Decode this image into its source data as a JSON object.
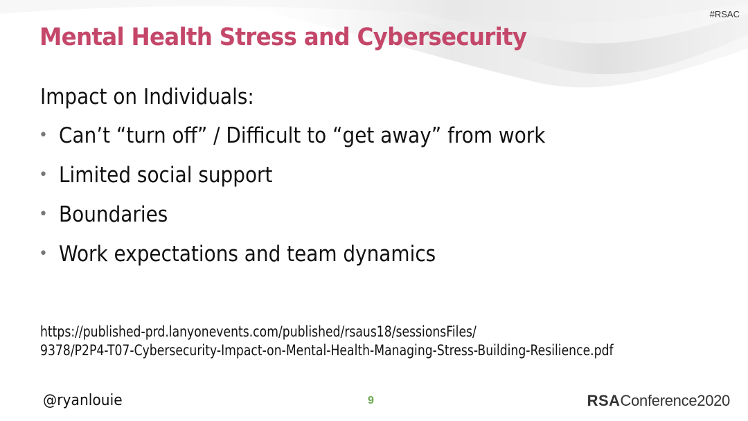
{
  "slide": {
    "hashtag": "#RSAC",
    "title": "Mental Health Stress and Cybersecurity",
    "subheading": "Impact on Individuals:",
    "bullets": [
      "Can’t “turn off” / Difficult to “get away” from work",
      "Limited social support",
      "Boundaries",
      "Work expectations and team dynamics"
    ],
    "reference": {
      "line1": "https://published-prd.lanyonevents.com/published/rsaus18/sessionsFiles/",
      "line2": "9378/P2P4-T07-Cybersecurity-Impact-on-Mental-Health-Managing-Stress-Building-Resilience.pdf"
    }
  },
  "footer": {
    "handle": "@ryanlouie",
    "page_number": "9",
    "logo_rsa": "RSA",
    "logo_conference": "Conference2020"
  },
  "colors": {
    "title": "#c4476a",
    "page_number": "#6aa84f",
    "text": "#111111"
  }
}
